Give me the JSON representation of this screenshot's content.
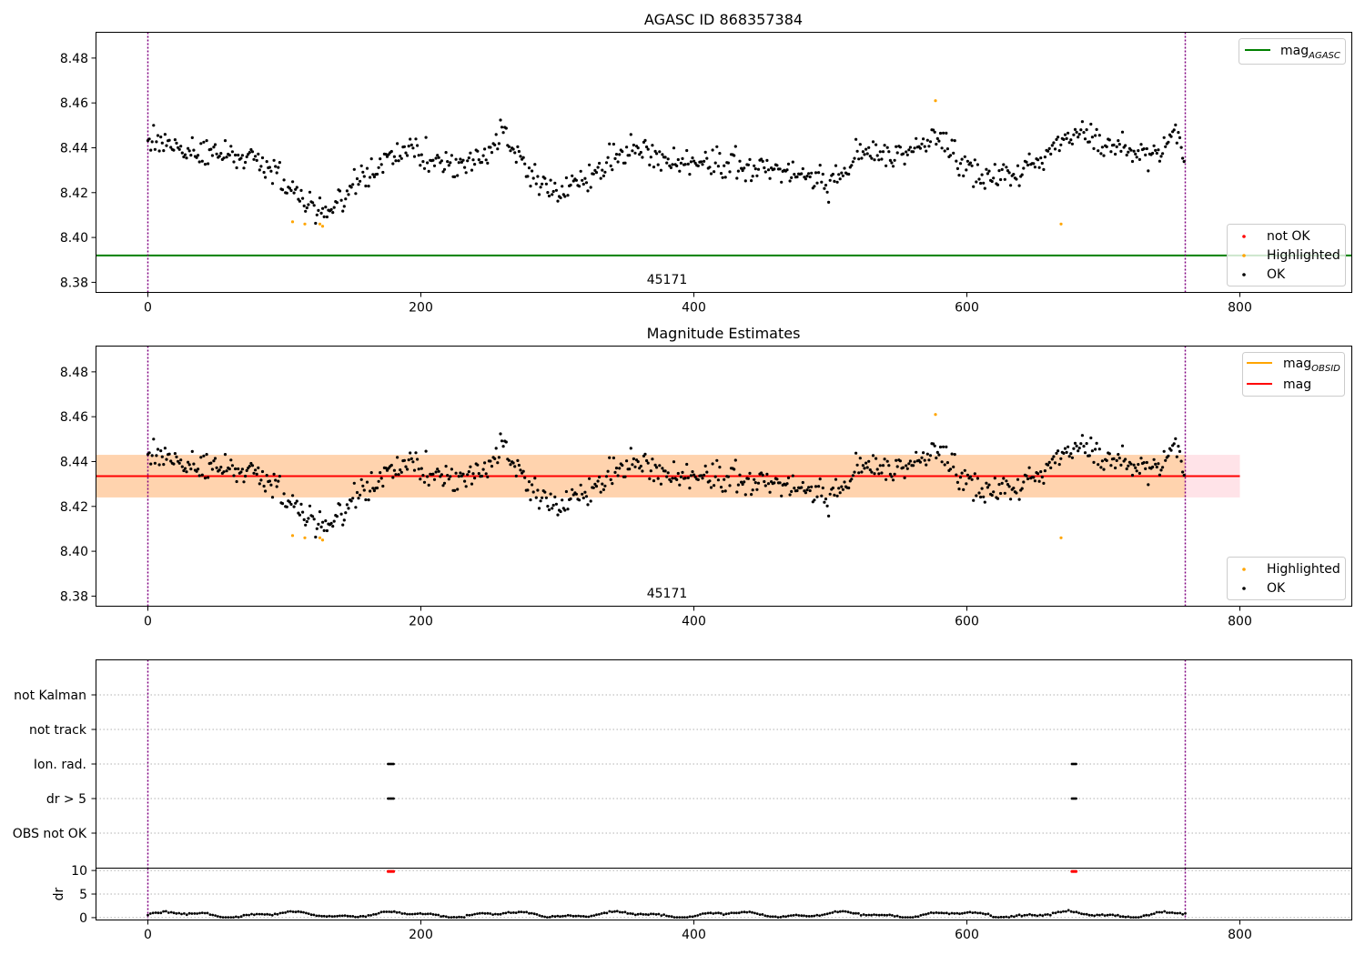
{
  "figure": {
    "background": "#ffffff",
    "colors": {
      "ok": "#000000",
      "highlighted": "#ffa500",
      "not_ok": "#ff0000",
      "agasc_line": "#008000",
      "obsid_line": "#ffa500",
      "mag_line": "#ff0000",
      "obsid_band": "#ffa500",
      "mag_band": "#ffc0cb",
      "obs_boundary": "#800080",
      "flag_grid": "#b0b0b0"
    }
  },
  "chart_data": [
    {
      "id": "agasc",
      "type": "scatter",
      "title": "AGASC ID 868357384",
      "xlim": [
        -38,
        882
      ],
      "ylim": [
        8.3755,
        8.4915
      ],
      "xticks": [
        0,
        200,
        400,
        600,
        800
      ],
      "yticks": [
        8.38,
        8.4,
        8.42,
        8.44,
        8.46,
        8.48
      ],
      "obsid_label": {
        "x": 380,
        "y": 8.381,
        "text": "45171"
      },
      "boundaries": [
        0,
        760
      ],
      "lines": [
        {
          "name": "mag_AGASC",
          "y": 8.392,
          "x": [
            -38,
            882
          ],
          "color": "#008000"
        }
      ],
      "highlighted": {
        "x": [
          106,
          115,
          126,
          128,
          577,
          669
        ],
        "y": [
          8.407,
          8.406,
          8.406,
          8.405,
          8.461,
          8.406
        ]
      },
      "not_ok": {
        "x": [],
        "y": []
      },
      "legend_lines": [
        {
          "label": "mag",
          "sub": "AGASC"
        }
      ],
      "legend_markers": [
        "not OK",
        "Highlighted",
        "OK"
      ]
    },
    {
      "id": "mag_estimates",
      "type": "scatter",
      "title": "Magnitude Estimates",
      "xlim": [
        -38,
        882
      ],
      "ylim": [
        8.3755,
        8.4915
      ],
      "xticks": [
        0,
        200,
        400,
        600,
        800
      ],
      "yticks": [
        8.38,
        8.4,
        8.42,
        8.44,
        8.46,
        8.48
      ],
      "obsid_label": {
        "x": 380,
        "y": 8.381,
        "text": "45171"
      },
      "boundaries": [
        0,
        760
      ],
      "bands": [
        {
          "x": [
            -38,
            800
          ],
          "y": [
            8.424,
            8.443
          ],
          "color": "#ffc0cb"
        },
        {
          "x": [
            -38,
            760
          ],
          "y": [
            8.424,
            8.443
          ],
          "color": "#ffa500"
        }
      ],
      "lines": [
        {
          "name": "mag_OBSID",
          "y": 8.4335,
          "x": [
            -38,
            760
          ],
          "color": "#ffa500"
        },
        {
          "name": "mag",
          "y": 8.4335,
          "x": [
            -38,
            800
          ],
          "color": "#ff0000"
        }
      ],
      "highlighted": {
        "x": [
          106,
          115,
          126,
          128,
          577,
          669
        ],
        "y": [
          8.407,
          8.406,
          8.406,
          8.405,
          8.461,
          8.406
        ]
      },
      "legend_lines": [
        {
          "label": "mag",
          "sub": "OBSID"
        },
        {
          "label": "mag",
          "sub": ""
        }
      ],
      "legend_markers": [
        "Highlighted",
        "OK"
      ]
    },
    {
      "id": "flags",
      "type": "scatter",
      "categories": [
        "OBS not OK",
        "dr > 5",
        "Ion. rad.",
        "not track",
        "not Kalman"
      ],
      "xlim": [
        -38,
        882
      ],
      "boundaries": [
        0,
        760
      ],
      "points": [
        {
          "category": "dr > 5",
          "x": [
            176,
            177,
            178,
            179,
            180,
            677,
            678,
            679,
            680
          ]
        },
        {
          "category": "Ion. rad.",
          "x": [
            176,
            177,
            178,
            179,
            180,
            677,
            678,
            679,
            680
          ]
        }
      ]
    },
    {
      "id": "dr",
      "type": "line",
      "ylabel": "dr",
      "xlim": [
        -38,
        882
      ],
      "ylim": [
        -0.5,
        10.5
      ],
      "xticks": [
        0,
        200,
        400,
        600,
        800
      ],
      "yticks": [
        0,
        5,
        10
      ],
      "clipped_x": [
        176,
        177,
        178,
        179,
        180,
        677,
        678,
        679,
        680
      ],
      "clipped_y": 9.8
    }
  ]
}
